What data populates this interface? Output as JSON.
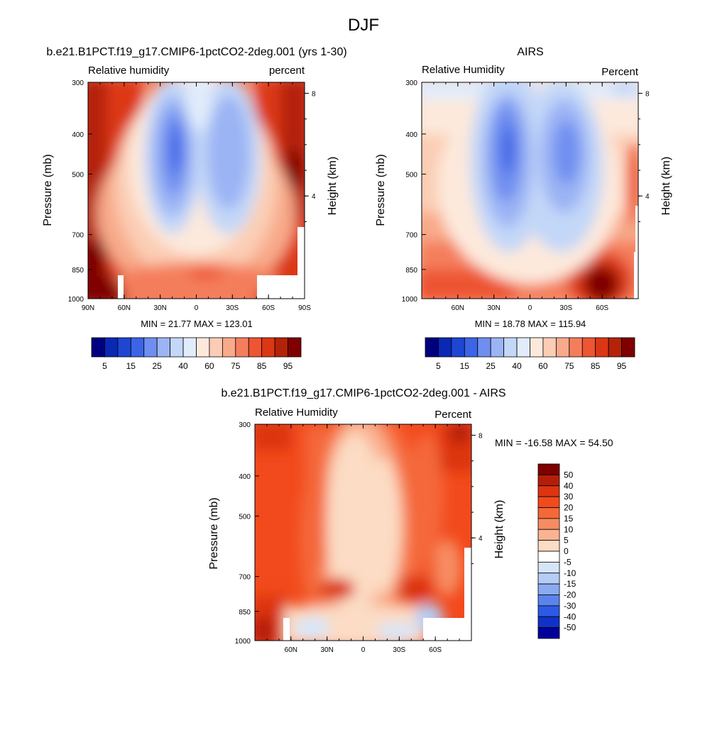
{
  "main_title": "DJF",
  "chart_data": [
    {
      "type": "heatmap",
      "id": "model",
      "title": "b.e21.B1PCT.f19_g17.CMIP6-1pctCO2-2deg.001 (yrs 1-30)",
      "left_string": "Relative humidity",
      "right_string": "percent",
      "ylabel": "Pressure (mb)",
      "ylabel_right": "Height (km)",
      "x_ticklabels": [
        "90N",
        "60N",
        "30N",
        "0",
        "30S",
        "60S",
        "90S"
      ],
      "y_ticklabels": [
        "300",
        "400",
        "500",
        "700",
        "850",
        "1000"
      ],
      "height_ticklabels": [
        "8",
        "4"
      ],
      "min_max_text": "MIN =  21.77  MAX = 123.01",
      "xlim": [
        90,
        -90
      ],
      "ylim": [
        1000,
        300
      ],
      "colorbar_labels": [
        "5",
        "15",
        "25",
        "40",
        "60",
        "75",
        "85",
        "95"
      ],
      "colorbar_colors": [
        "#00007f",
        "#0a28b4",
        "#1e46d2",
        "#3c64e6",
        "#6e8ef0",
        "#9bb4f4",
        "#c3d7f8",
        "#e1ecfb",
        "#fde9dc",
        "#fbcdb4",
        "#f8aa8a",
        "#f47e5c",
        "#ed5533",
        "#dc3714",
        "#b42308",
        "#7f0000"
      ]
    },
    {
      "type": "heatmap",
      "id": "obs",
      "title": "AIRS",
      "left_string": "Relative Humidity",
      "right_string": "Percent",
      "ylabel": "Pressure (mb)",
      "ylabel_right": "Height (km)",
      "x_ticklabels": [
        "60N",
        "30N",
        "0",
        "30S",
        "60S"
      ],
      "y_ticklabels": [
        "300",
        "400",
        "500",
        "700",
        "850",
        "1000"
      ],
      "height_ticklabels": [
        "8",
        "4"
      ],
      "min_max_text": "MIN =  18.78  MAX = 115.94",
      "xlim": [
        90,
        -90
      ],
      "ylim": [
        1000,
        300
      ],
      "colorbar_labels": [
        "5",
        "15",
        "25",
        "40",
        "60",
        "75",
        "85",
        "95"
      ],
      "colorbar_colors": [
        "#00007f",
        "#0a28b4",
        "#1e46d2",
        "#3c64e6",
        "#6e8ef0",
        "#9bb4f4",
        "#c3d7f8",
        "#e1ecfb",
        "#fde9dc",
        "#fbcdb4",
        "#f8aa8a",
        "#f47e5c",
        "#ed5533",
        "#dc3714",
        "#b42308",
        "#7f0000"
      ]
    },
    {
      "type": "heatmap",
      "id": "diff",
      "title": "b.e21.B1PCT.f19_g17.CMIP6-1pctCO2-2deg.001 - AIRS",
      "left_string": "Relative Humidity",
      "right_string": "Percent",
      "ylabel": "Pressure (mb)",
      "ylabel_right": "Height (km)",
      "x_ticklabels": [
        "60N",
        "30N",
        "0",
        "30S",
        "60S"
      ],
      "y_ticklabels": [
        "300",
        "400",
        "500",
        "700",
        "850",
        "1000"
      ],
      "height_ticklabels": [
        "8",
        "4"
      ],
      "min_max_text": "MIN = -16.58  MAX =  54.50",
      "xlim": [
        90,
        -90
      ],
      "ylim": [
        1000,
        300
      ],
      "colorbar_labels": [
        "50",
        "40",
        "30",
        "20",
        "15",
        "10",
        "5",
        "0",
        "-5",
        "-10",
        "-15",
        "-20",
        "-30",
        "-40",
        "-50"
      ],
      "colorbar_colors": [
        "#7f0000",
        "#b41e08",
        "#dc3510",
        "#f24a1c",
        "#f4683a",
        "#f78c62",
        "#f9b393",
        "#fcdcc4",
        "#ffffff",
        "#d6e6fa",
        "#b4cdf7",
        "#8aabf2",
        "#5a84ec",
        "#2d5ae4",
        "#1032c8",
        "#00009a"
      ]
    }
  ]
}
